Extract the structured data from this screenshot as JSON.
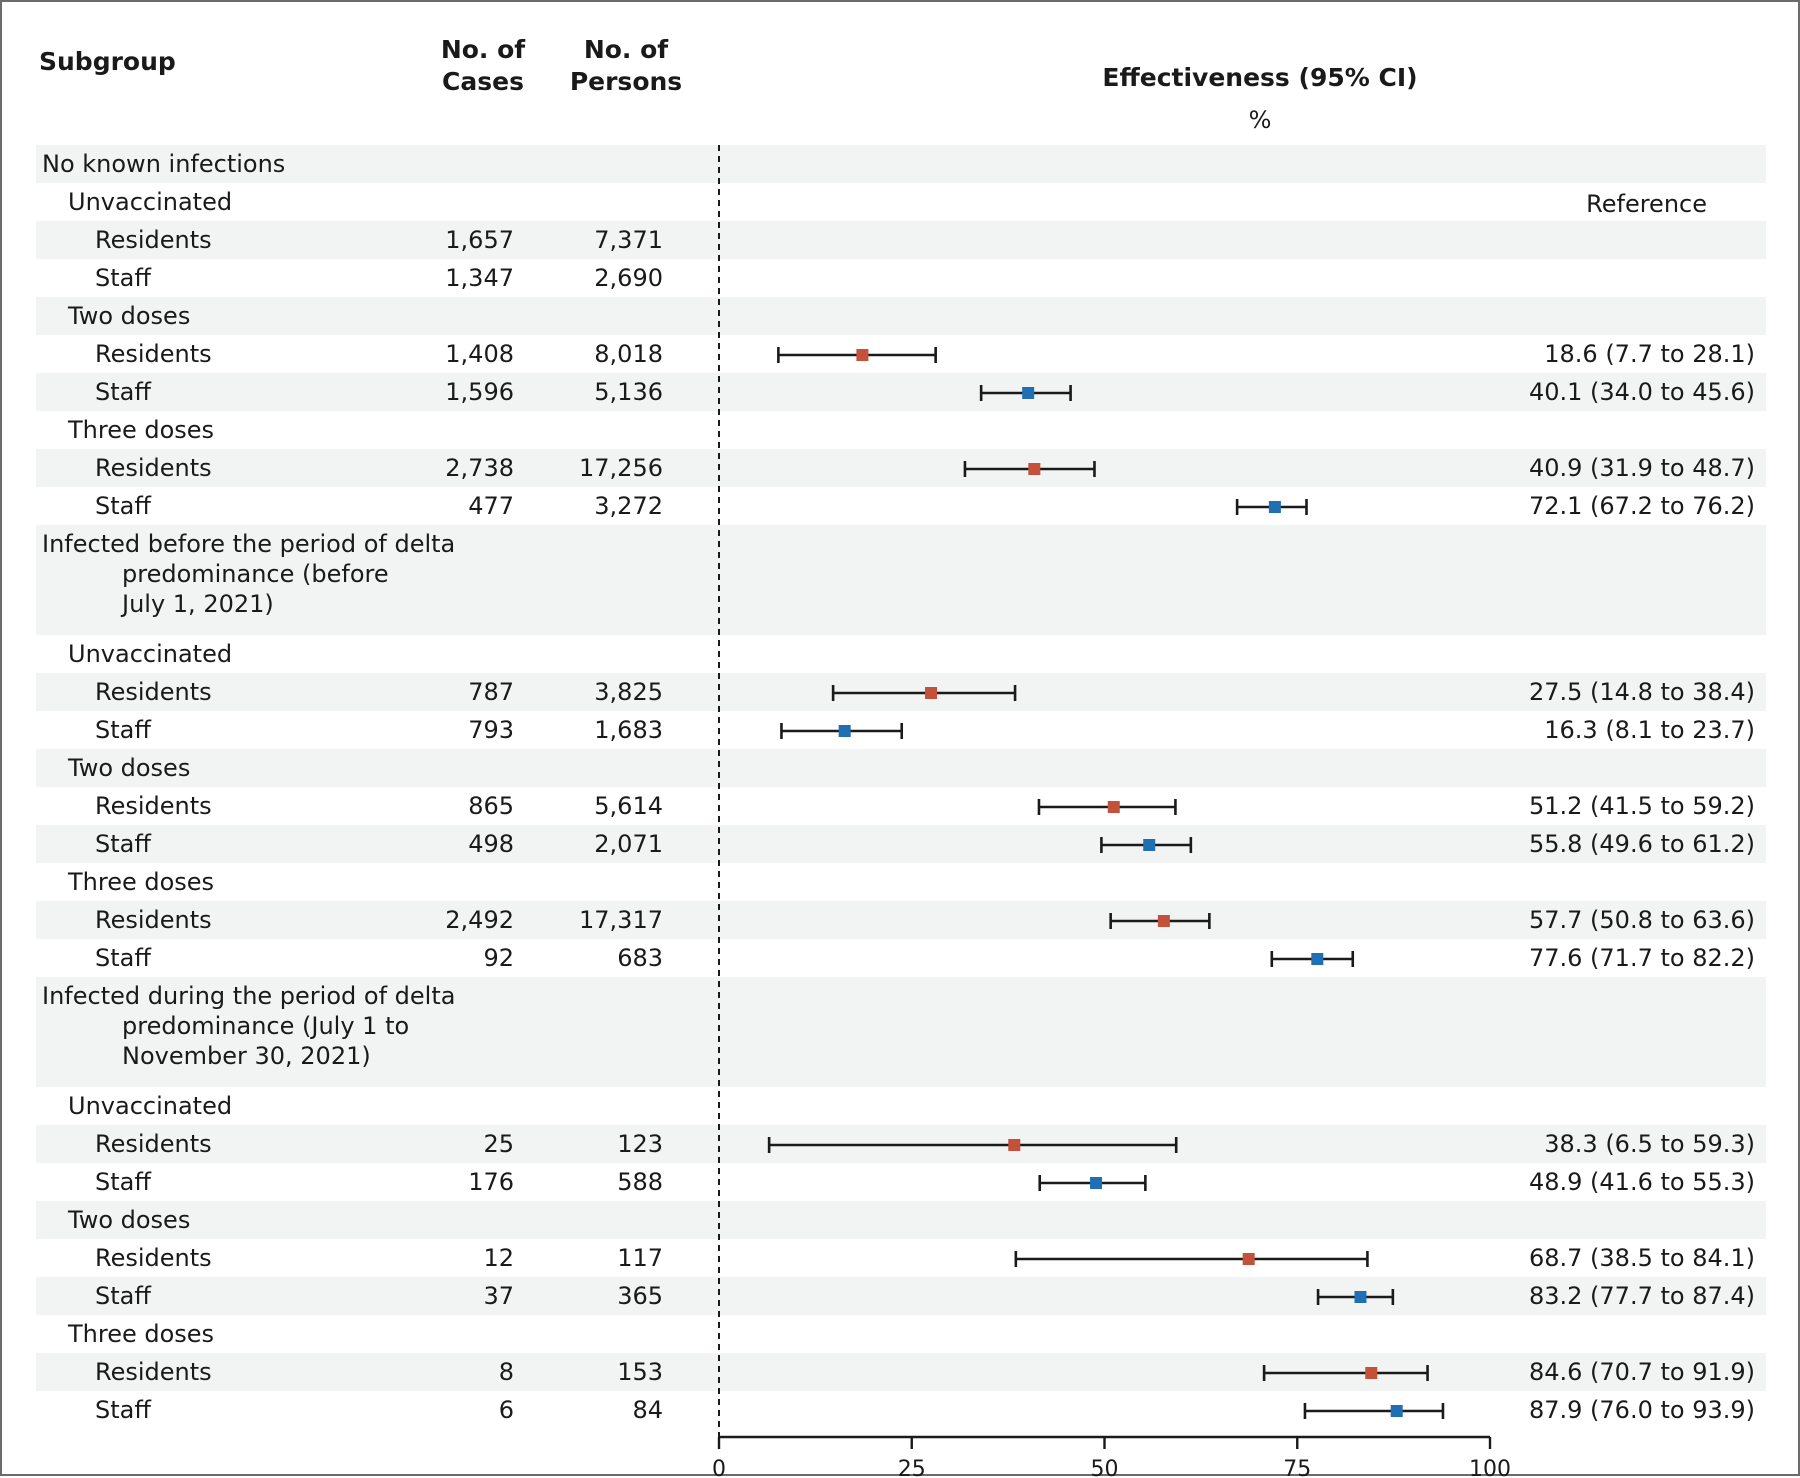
{
  "chart_data": {
    "type": "forest",
    "headers": {
      "subgroup": "Subgroup",
      "cases": [
        "No. of",
        "Cases"
      ],
      "persons": [
        "No. of",
        "Persons"
      ],
      "effect_title": "Effectiveness (95% CI)",
      "effect_unit": "%"
    },
    "x_ticks": [
      0,
      25,
      50,
      75,
      100
    ],
    "xlim": [
      0,
      100
    ],
    "reference_line_at": 0,
    "colors": {
      "Residents": "#c4513a",
      "Staff": "#1f6fb2",
      "shade": "#f2f4f3",
      "ink": "#1a1a1a"
    },
    "rows": [
      {
        "kind": "group",
        "lines": [
          "No known infections"
        ],
        "shade": true
      },
      {
        "kind": "sub",
        "label": "Unvaccinated",
        "shade": false,
        "note": "Reference"
      },
      {
        "kind": "data",
        "label": "Residents",
        "cases": "1,657",
        "persons": "7,371",
        "shade": true
      },
      {
        "kind": "data",
        "label": "Staff",
        "cases": "1,347",
        "persons": "2,690",
        "shade": false
      },
      {
        "kind": "sub",
        "label": "Two doses",
        "shade": true
      },
      {
        "kind": "data",
        "label": "Residents",
        "cases": "1,408",
        "persons": "8,018",
        "est": 18.6,
        "lo": 7.7,
        "hi": 28.1,
        "ci": "18.6 (7.7 to 28.1)",
        "shade": false
      },
      {
        "kind": "data",
        "label": "Staff",
        "cases": "1,596",
        "persons": "5,136",
        "est": 40.1,
        "lo": 34.0,
        "hi": 45.6,
        "ci": "40.1 (34.0 to 45.6)",
        "shade": true
      },
      {
        "kind": "sub",
        "label": "Three doses",
        "shade": false
      },
      {
        "kind": "data",
        "label": "Residents",
        "cases": "2,738",
        "persons": "17,256",
        "est": 40.9,
        "lo": 31.9,
        "hi": 48.7,
        "ci": "40.9 (31.9 to 48.7)",
        "shade": true
      },
      {
        "kind": "data",
        "label": "Staff",
        "cases": "477",
        "persons": "3,272",
        "est": 72.1,
        "lo": 67.2,
        "hi": 76.2,
        "ci": "72.1 (67.2 to 76.2)",
        "shade": false
      },
      {
        "kind": "group",
        "lines": [
          "Infected before the period of delta",
          "predominance (before",
          "July 1, 2021)"
        ],
        "shade": true
      },
      {
        "kind": "sub",
        "label": "Unvaccinated",
        "shade": false
      },
      {
        "kind": "data",
        "label": "Residents",
        "cases": "787",
        "persons": "3,825",
        "est": 27.5,
        "lo": 14.8,
        "hi": 38.4,
        "ci": "27.5 (14.8 to 38.4)",
        "shade": true
      },
      {
        "kind": "data",
        "label": "Staff",
        "cases": "793",
        "persons": "1,683",
        "est": 16.3,
        "lo": 8.1,
        "hi": 23.7,
        "ci": "16.3 (8.1 to 23.7)",
        "shade": false
      },
      {
        "kind": "sub",
        "label": "Two doses",
        "shade": true
      },
      {
        "kind": "data",
        "label": "Residents",
        "cases": "865",
        "persons": "5,614",
        "est": 51.2,
        "lo": 41.5,
        "hi": 59.2,
        "ci": "51.2 (41.5 to 59.2)",
        "shade": false
      },
      {
        "kind": "data",
        "label": "Staff",
        "cases": "498",
        "persons": "2,071",
        "est": 55.8,
        "lo": 49.6,
        "hi": 61.2,
        "ci": "55.8 (49.6 to 61.2)",
        "shade": true
      },
      {
        "kind": "sub",
        "label": "Three doses",
        "shade": false
      },
      {
        "kind": "data",
        "label": "Residents",
        "cases": "2,492",
        "persons": "17,317",
        "est": 57.7,
        "lo": 50.8,
        "hi": 63.6,
        "ci": "57.7 (50.8 to 63.6)",
        "shade": true
      },
      {
        "kind": "data",
        "label": "Staff",
        "cases": "92",
        "persons": "683",
        "est": 77.6,
        "lo": 71.7,
        "hi": 82.2,
        "ci": "77.6 (71.7 to 82.2)",
        "shade": false
      },
      {
        "kind": "group",
        "lines": [
          "Infected during the period of delta",
          "predominance (July 1 to",
          "November 30, 2021)"
        ],
        "shade": true
      },
      {
        "kind": "sub",
        "label": "Unvaccinated",
        "shade": false
      },
      {
        "kind": "data",
        "label": "Residents",
        "cases": "25",
        "persons": "123",
        "est": 38.3,
        "lo": 6.5,
        "hi": 59.3,
        "ci": "38.3 (6.5 to 59.3)",
        "shade": true
      },
      {
        "kind": "data",
        "label": "Staff",
        "cases": "176",
        "persons": "588",
        "est": 48.9,
        "lo": 41.6,
        "hi": 55.3,
        "ci": "48.9 (41.6 to 55.3)",
        "shade": false
      },
      {
        "kind": "sub",
        "label": "Two doses",
        "shade": true
      },
      {
        "kind": "data",
        "label": "Residents",
        "cases": "12",
        "persons": "117",
        "est": 68.7,
        "lo": 38.5,
        "hi": 84.1,
        "ci": "68.7 (38.5 to 84.1)",
        "shade": false
      },
      {
        "kind": "data",
        "label": "Staff",
        "cases": "37",
        "persons": "365",
        "est": 83.2,
        "lo": 77.7,
        "hi": 87.4,
        "ci": "83.2 (77.7 to 87.4)",
        "shade": true
      },
      {
        "kind": "sub",
        "label": "Three doses",
        "shade": false
      },
      {
        "kind": "data",
        "label": "Residents",
        "cases": "8",
        "persons": "153",
        "est": 84.6,
        "lo": 70.7,
        "hi": 91.9,
        "ci": "84.6 (70.7 to 91.9)",
        "shade": true
      },
      {
        "kind": "data",
        "label": "Staff",
        "cases": "6",
        "persons": "84",
        "est": 87.9,
        "lo": 76.0,
        "hi": 93.9,
        "ci": "87.9 (76.0 to 93.9)",
        "shade": false
      }
    ]
  }
}
